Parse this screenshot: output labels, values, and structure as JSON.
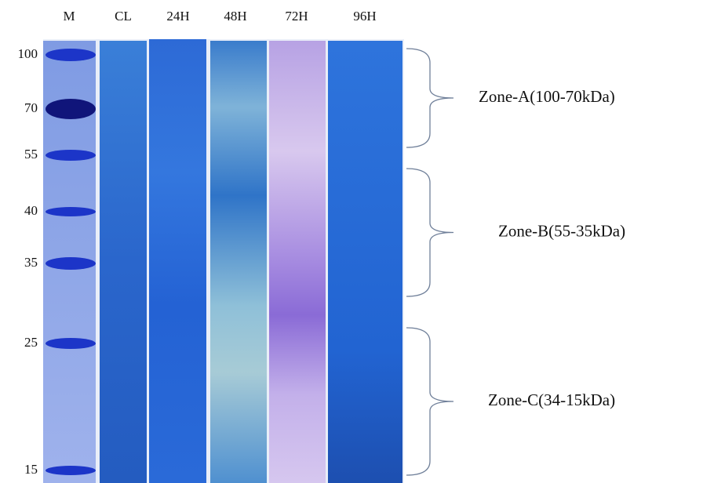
{
  "lanes": [
    "M",
    "CL",
    "24H",
    "48H",
    "72H",
    "96H"
  ],
  "markers": [
    "100",
    "70",
    "55",
    "40",
    "35",
    "25",
    "15"
  ],
  "zones": [
    "Zone-A(100-70kDa)",
    "Zone-B(55-35kDa)",
    "Zone-C(34-15kDa)"
  ]
}
